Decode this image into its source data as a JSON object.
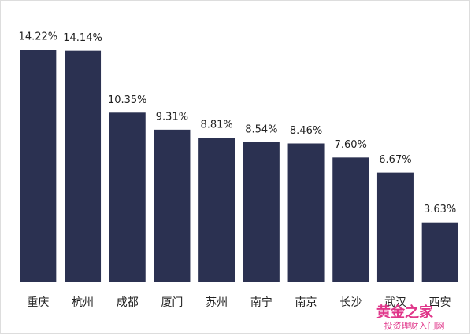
{
  "chart_data": {
    "type": "bar",
    "categories": [
      "重庆",
      "杭州",
      "成都",
      "厦门",
      "苏州",
      "南宁",
      "南京",
      "长沙",
      "武汉",
      "西安"
    ],
    "values": [
      14.22,
      14.14,
      10.35,
      9.31,
      8.81,
      8.54,
      8.46,
      7.6,
      6.67,
      3.63
    ],
    "value_labels": [
      "14.22%",
      "14.14%",
      "10.35%",
      "9.31%",
      "8.81%",
      "8.54%",
      "8.46%",
      "7.60%",
      "6.67%",
      "3.63%"
    ],
    "color": "#2b3151"
  },
  "watermark": {
    "title": "黄金之家",
    "subtitle": "投资理财入门网"
  }
}
